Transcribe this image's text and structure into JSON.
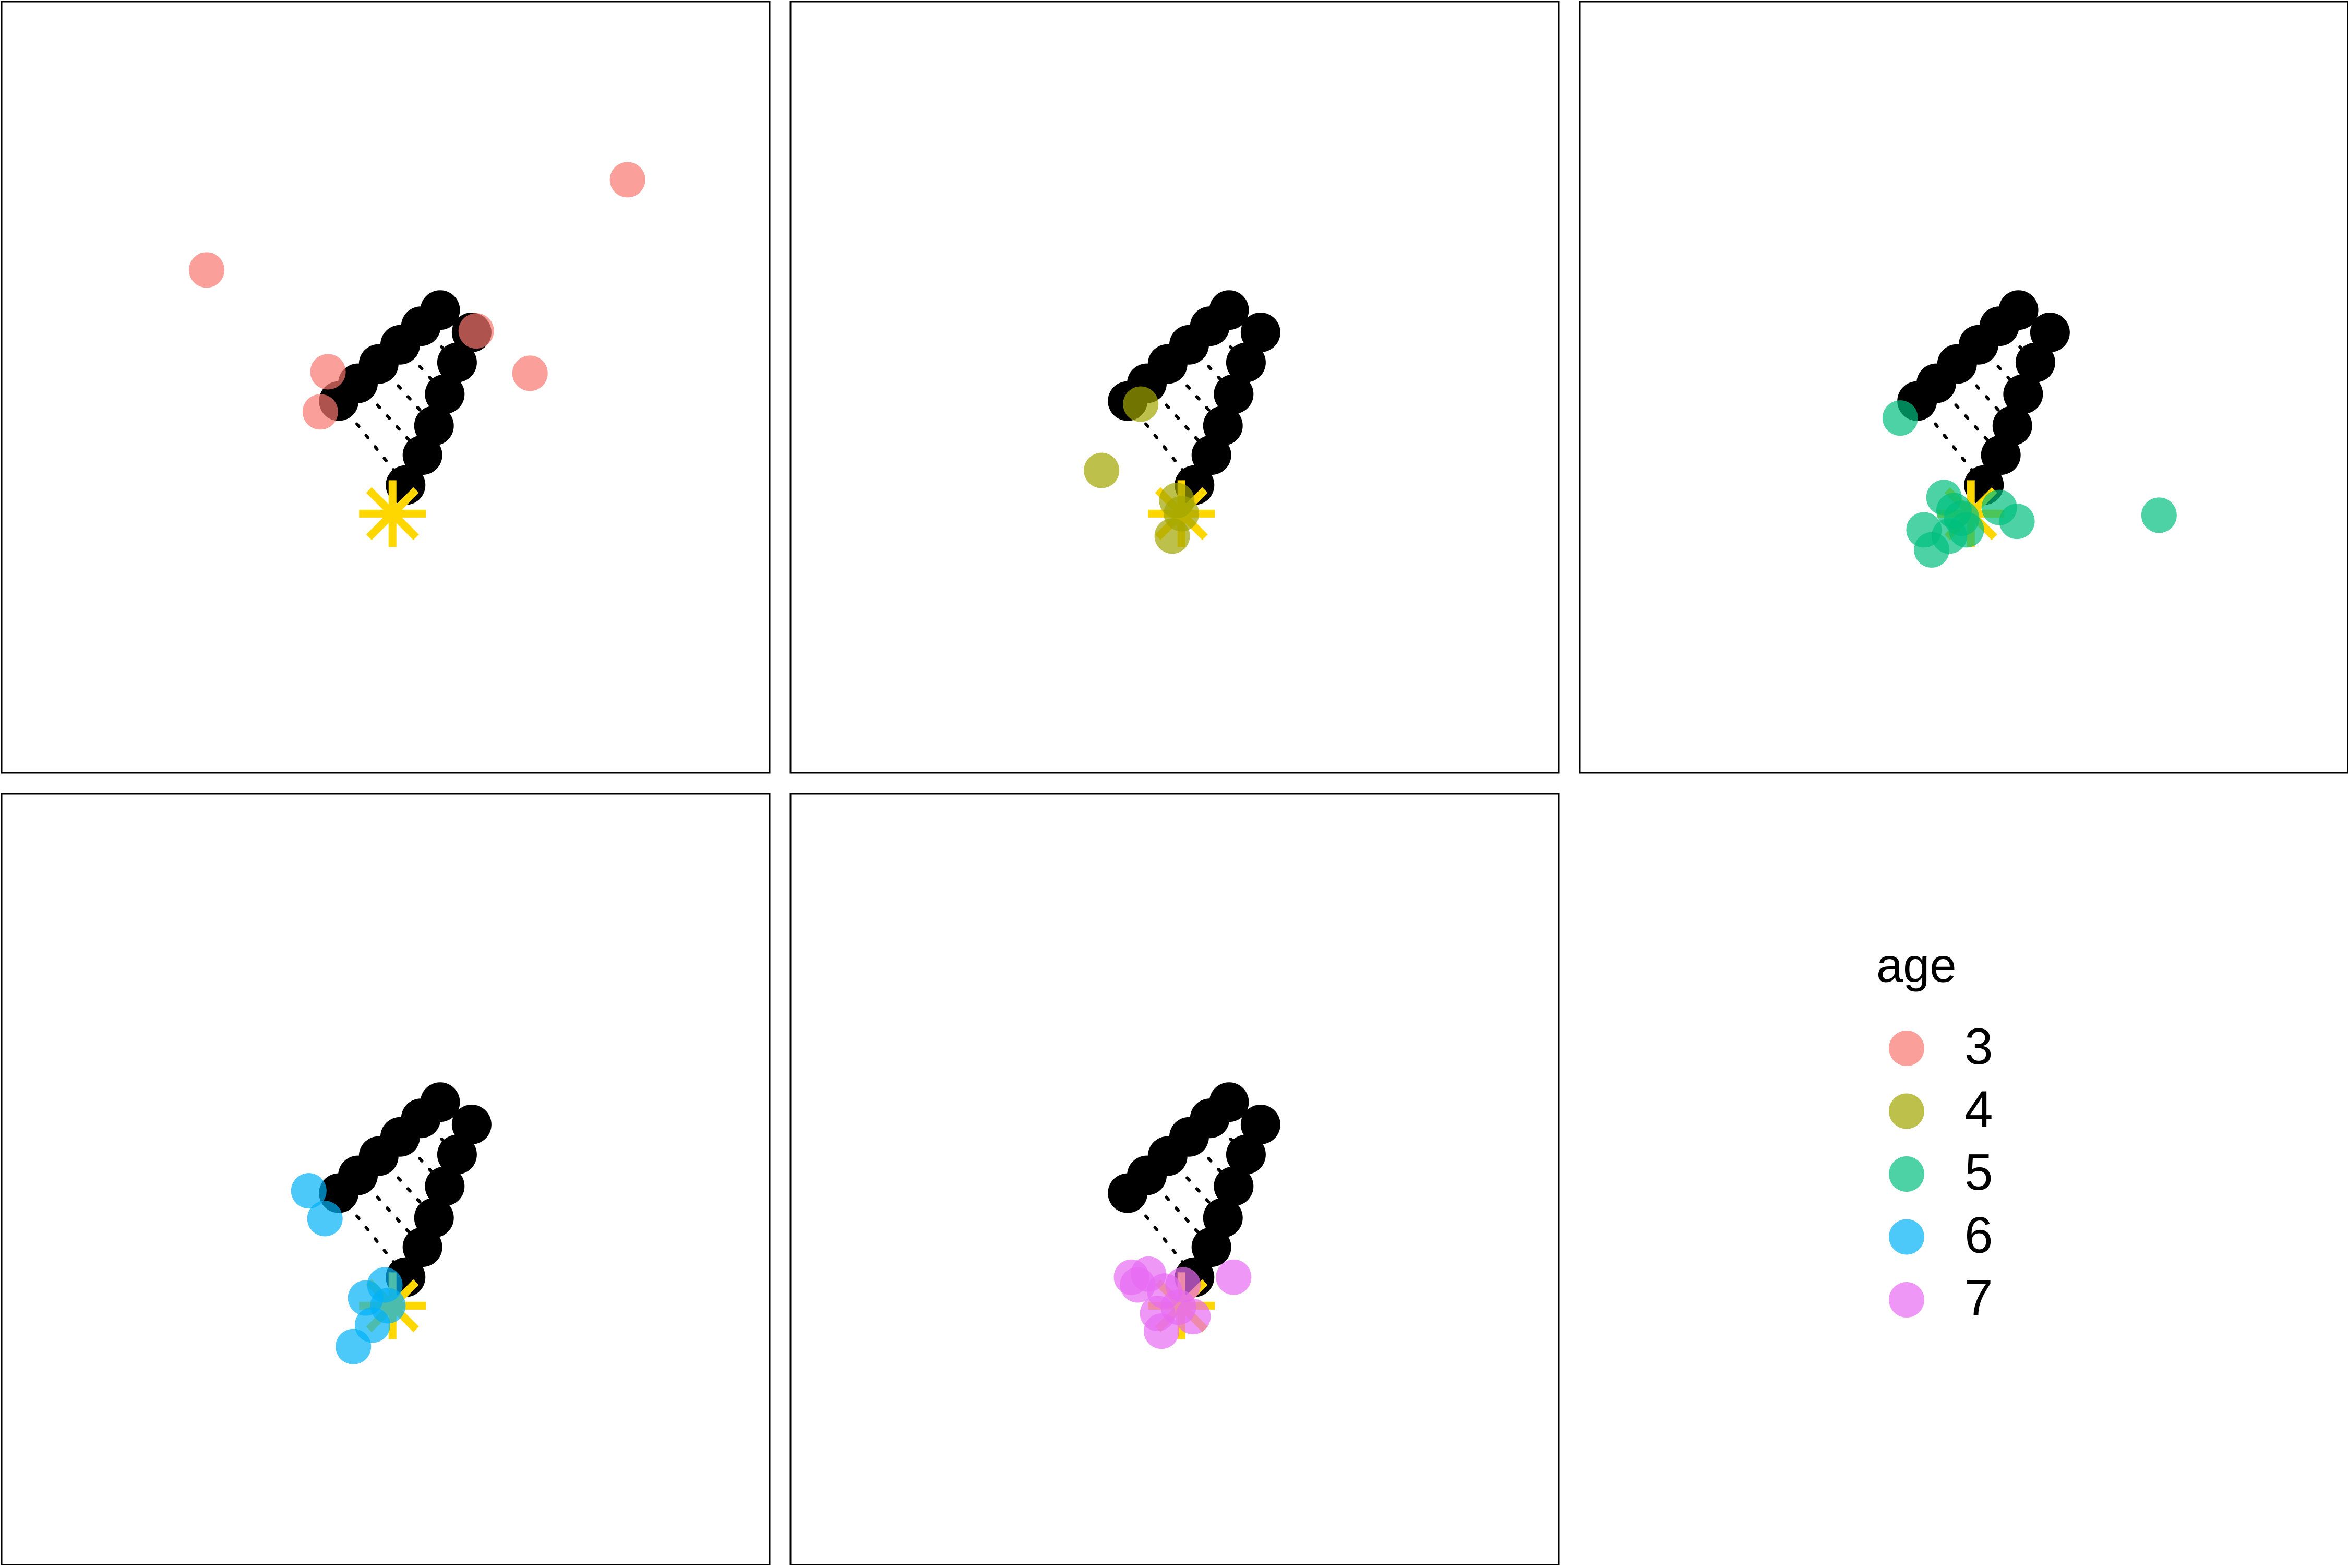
{
  "chart_data": {
    "type": "scatter",
    "xlim": [
      0,
      100
    ],
    "ylim": [
      0,
      100
    ],
    "alpha": 0.7,
    "legend_title": "age",
    "outline": {
      "color": "#000000",
      "x": [
        43.9,
        46.4,
        49.1,
        51.9,
        54.6,
        57.1,
        61.2,
        59.3,
        57.7,
        56.3,
        54.8,
        52.6
      ],
      "values": [
        48.2,
        50.5,
        53.0,
        55.5,
        57.9,
        60.0,
        57.1,
        53.2,
        49.1,
        45.0,
        41.2,
        37.3
      ]
    },
    "target": {
      "color": "#FFD700",
      "x": 50.9,
      "values": 33.6
    },
    "series": [
      {
        "name": "3",
        "color": "#F8766D",
        "x": [
          26.7,
          81.5,
          42.5,
          41.5,
          61.8,
          68.8
        ],
        "values": [
          65.2,
          76.9,
          52.0,
          46.8,
          57.3,
          51.8
        ]
      },
      {
        "name": "4",
        "color": "#A3A500",
        "x": [
          45.6,
          40.5,
          50.3,
          50.9,
          49.7
        ],
        "values": [
          47.8,
          39.2,
          35.3,
          33.6,
          30.7
        ]
      },
      {
        "name": "5",
        "color": "#00BF7D",
        "x": [
          41.7,
          75.4,
          47.4,
          44.8,
          45.8,
          48.1,
          49.7,
          50.3,
          54.6,
          56.9,
          48.7
        ],
        "values": [
          46.0,
          33.4,
          35.7,
          31.5,
          28.9,
          30.7,
          33.0,
          31.5,
          34.4,
          32.6,
          34.0
        ]
      },
      {
        "name": "6",
        "color": "#00B0F6",
        "x": [
          40.0,
          42.1,
          47.4,
          49.9,
          48.3,
          45.8,
          50.3
        ],
        "values": [
          48.5,
          44.9,
          34.6,
          36.3,
          31.1,
          28.3,
          33.6
        ]
      },
      {
        "name": "7",
        "color": "#E76BF3",
        "x": [
          44.4,
          46.6,
          57.7,
          48.7,
          51.1,
          47.8,
          50.5,
          52.4,
          48.3,
          45.2
        ],
        "values": [
          37.3,
          37.7,
          37.3,
          35.5,
          36.3,
          32.6,
          33.4,
          32.2,
          30.3,
          36.3
        ]
      }
    ]
  }
}
